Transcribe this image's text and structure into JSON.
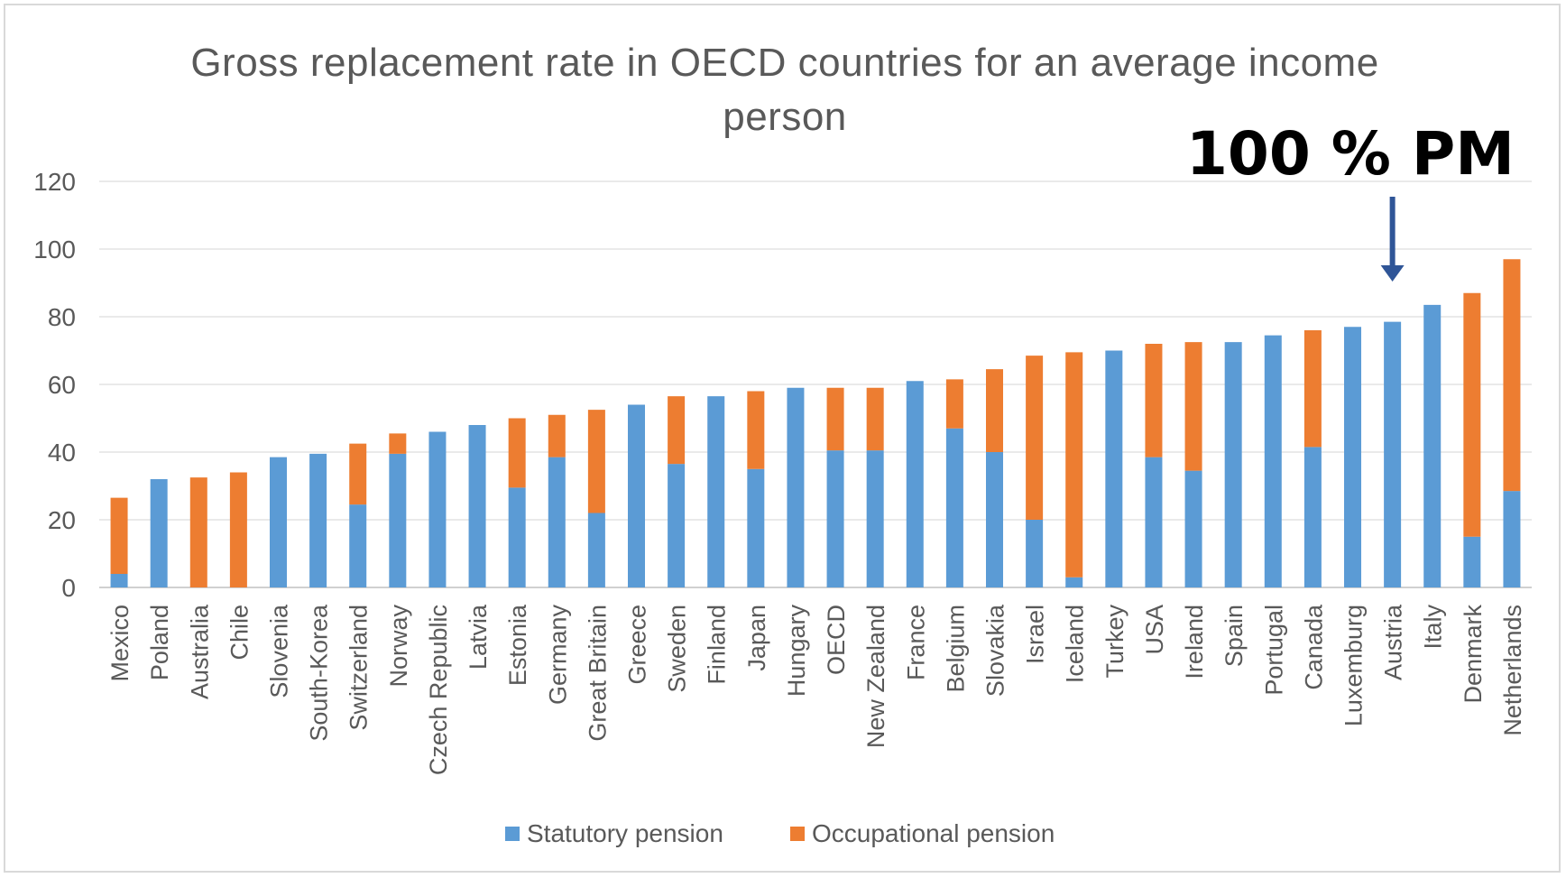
{
  "chart_data": {
    "type": "bar",
    "stacked": true,
    "title": "Gross replacement rate in OECD countries for an average income person",
    "categories": [
      "Mexico",
      "Poland",
      "Australia",
      "Chile",
      "Slovenia",
      "South-Korea",
      "Switzerland",
      "Norway",
      "Czech Republic",
      "Latvia",
      "Estonia",
      "Germany",
      "Great Britain",
      "Greece",
      "Sweden",
      "Finland",
      "Japan",
      "Hungary",
      "OECD",
      "New Zealand",
      "France",
      "Belgium",
      "Slovakia",
      "Israel",
      "Iceland",
      "Turkey",
      "USA",
      "Ireland",
      "Spain",
      "Portugal",
      "Canada",
      "Luxemburg",
      "Austria",
      "Italy",
      "Denmark",
      "Netherlands"
    ],
    "series": [
      {
        "name": "Statutory pension",
        "color": "#5b9bd5",
        "values": [
          4,
          32,
          0,
          0,
          38.5,
          39.5,
          24.5,
          39.5,
          46,
          48,
          29.5,
          38.5,
          22,
          54,
          36.5,
          56.5,
          35,
          59,
          40.5,
          40.5,
          61,
          47,
          40,
          20,
          3,
          70,
          38.5,
          34.5,
          72.5,
          74.5,
          41.5,
          77,
          78.5,
          83.5,
          15,
          28.5
        ]
      },
      {
        "name": "Occupational pension",
        "color": "#ed7d31",
        "values": [
          22.5,
          0,
          32.5,
          34,
          0,
          0,
          18,
          6,
          0,
          0,
          20.5,
          12.5,
          30.5,
          0,
          20,
          0,
          23,
          0,
          18.5,
          18.5,
          0,
          14.5,
          24.5,
          48.5,
          66.5,
          0,
          33.5,
          38,
          0,
          0,
          34.5,
          0,
          0,
          0,
          72,
          68.5
        ]
      }
    ],
    "ylim": [
      0,
      120
    ],
    "yticks": [
      0,
      20,
      40,
      60,
      80,
      100,
      120
    ],
    "grid": true,
    "legend": "bottom",
    "annotation": {
      "text": "100 % PM",
      "target_category": "Austria"
    }
  }
}
